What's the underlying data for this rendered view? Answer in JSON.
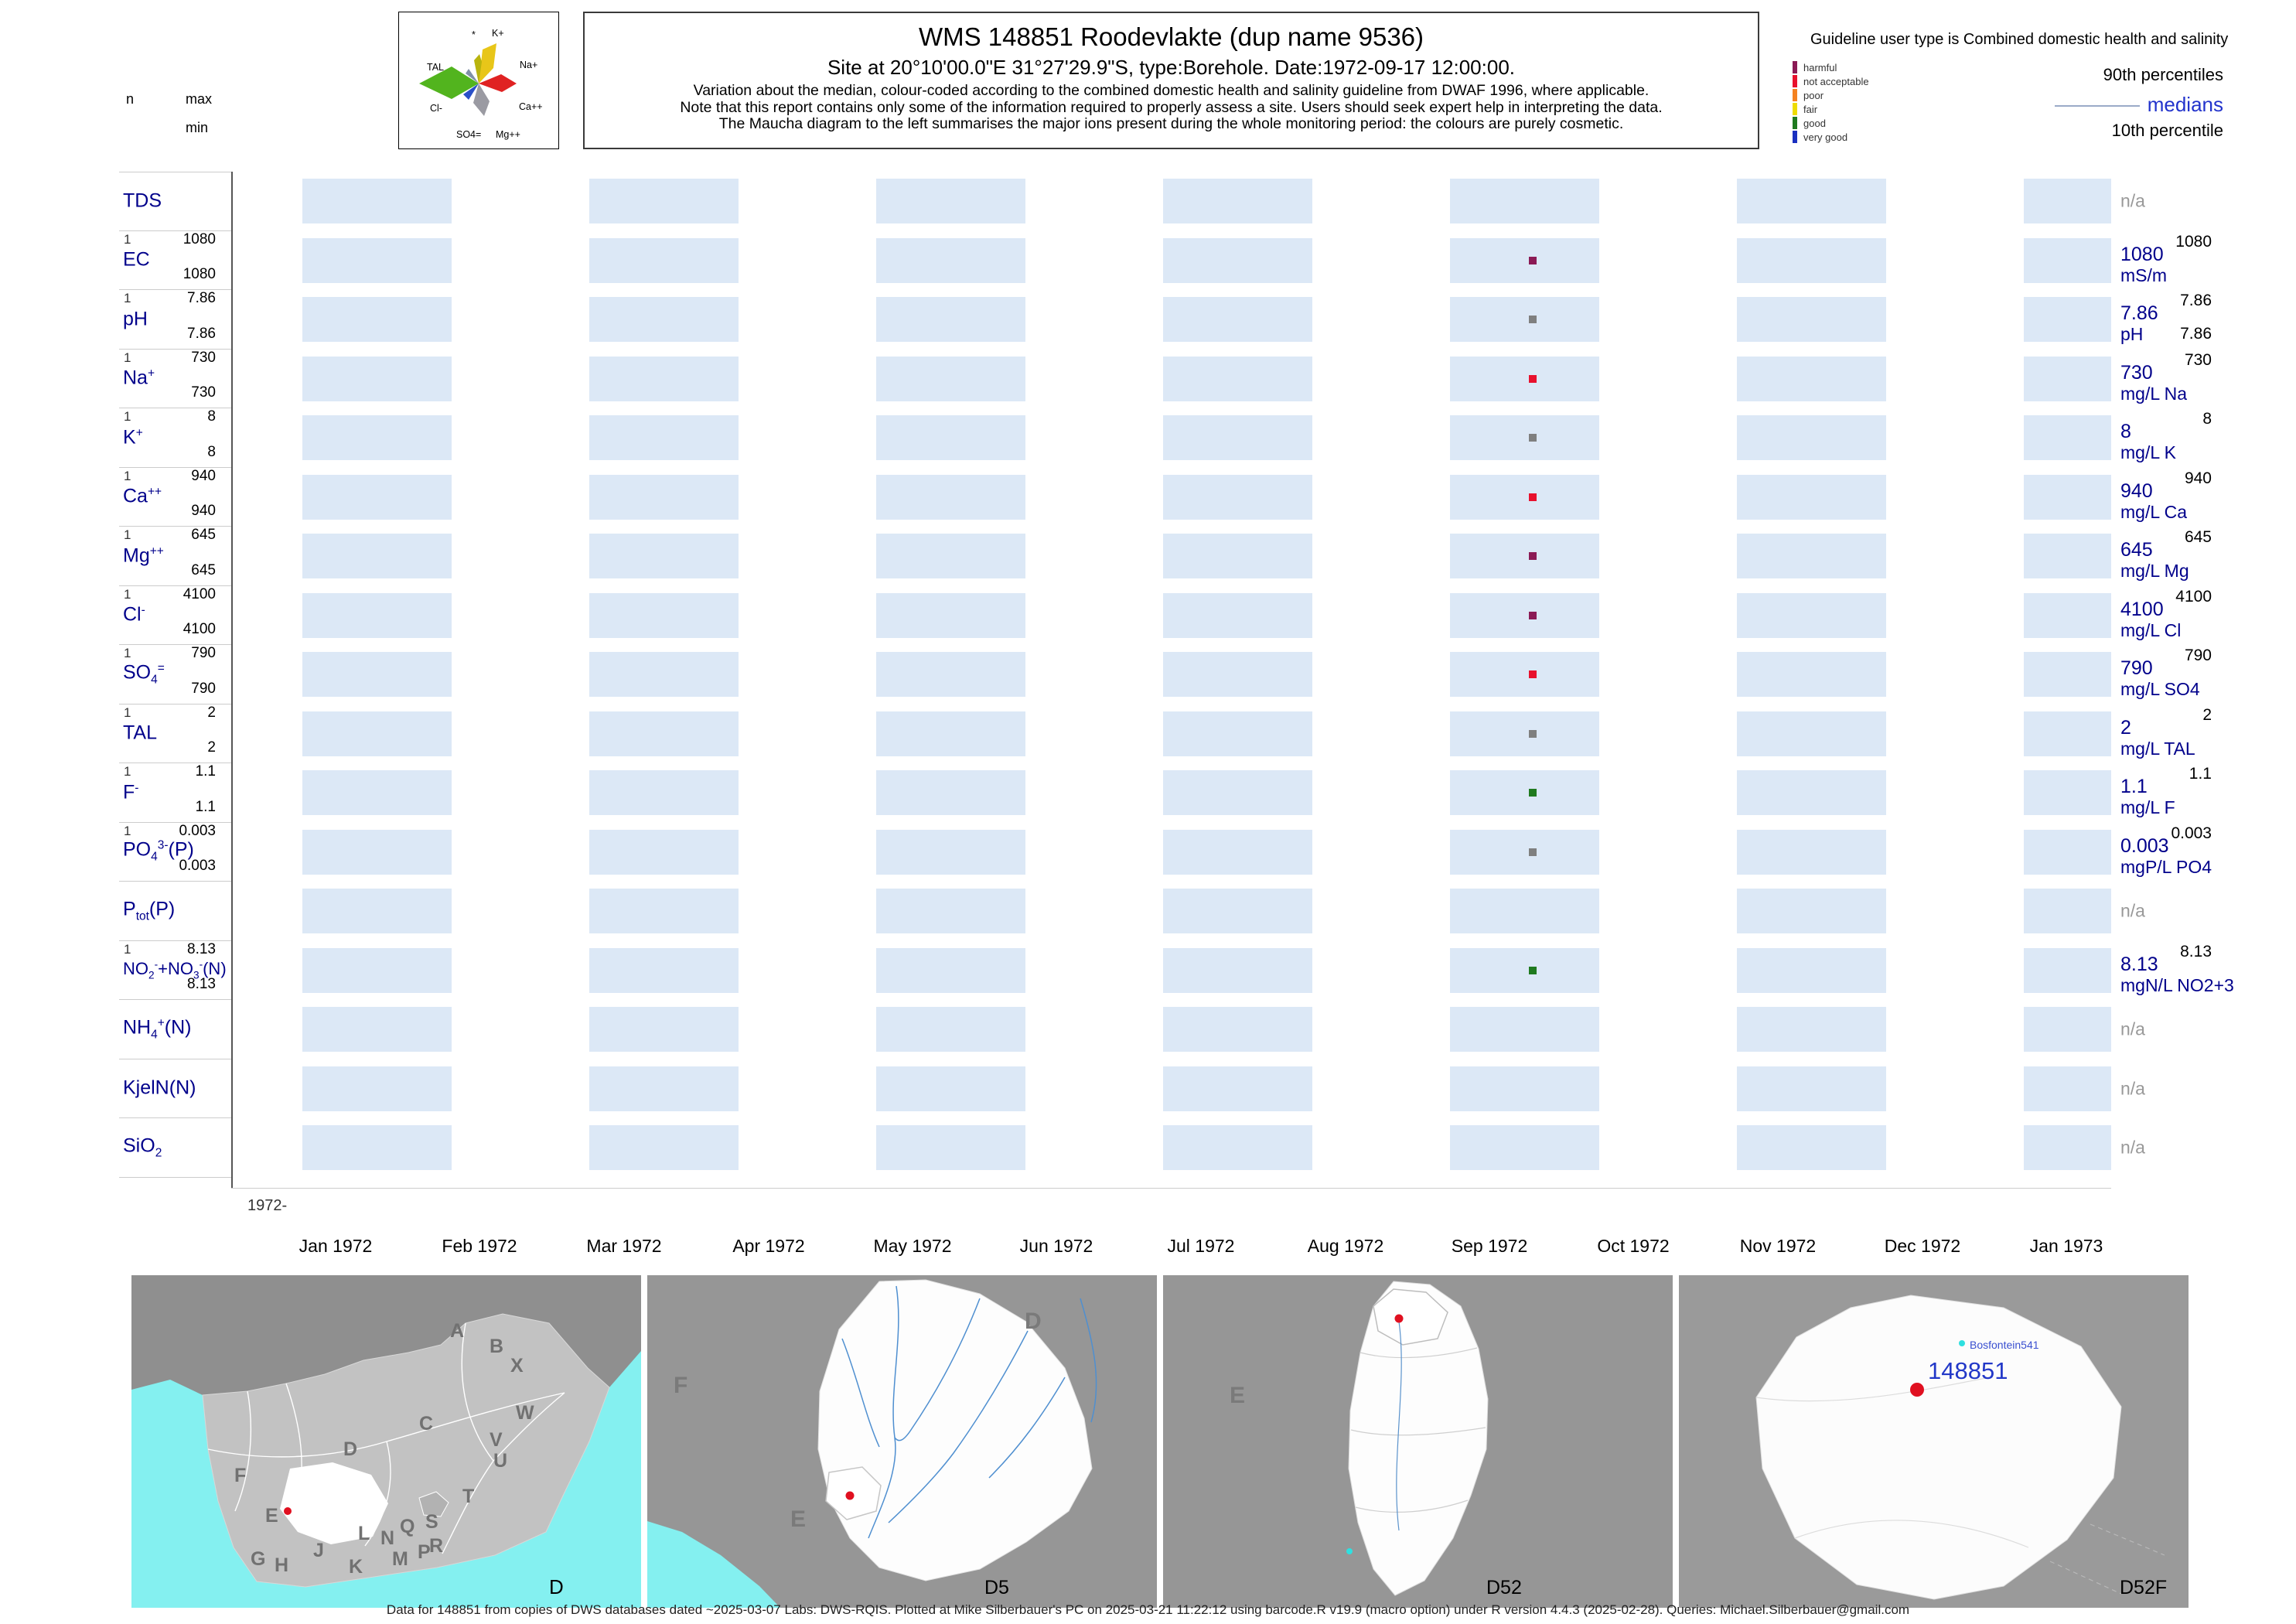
{
  "header": {
    "title": "WMS 148851  Roodevlakte (dup name 9536)",
    "subtitle": "Site at 20°10'00.0\"E 31°27'29.9\"S, type:Borehole. Date:1972-09-17 12:00:00.",
    "notes": [
      "Variation about the median,  colour-coded according to the combined domestic health and salinity guideline from DWAF 1996, where applicable.",
      "Note that this report contains only some of the information required to properly assess a site. Users should seek expert help in interpreting the data.",
      "The Maucha diagram to the left summarises the major ions present during the whole monitoring period: the colours are purely cosmetic."
    ],
    "stats": {
      "n": "n",
      "max": "max",
      "min": "min"
    }
  },
  "maucha": {
    "labels": {
      "star": "*",
      "k": "K+",
      "na": "Na+",
      "tal": "TAL",
      "cl": "Cl-",
      "ca": "Ca++",
      "so4": "SO4=",
      "mg": "Mg++"
    },
    "colors": {
      "cl": "#52b41e",
      "na": "#e8c619",
      "k": "#b9b40e",
      "ca": "#e02222",
      "mg": "#9a9aa2",
      "so4": "#2a50c8",
      "tal": "#8090a8"
    }
  },
  "guideline": {
    "title": "Guideline user type is Combined domestic health and salinity",
    "classes": [
      {
        "label": "harmful",
        "color": "#8B1A55"
      },
      {
        "label": "not acceptable",
        "color": "#E8112D"
      },
      {
        "label": "poor",
        "color": "#F58220"
      },
      {
        "label": "fair",
        "color": "#EEDC00"
      },
      {
        "label": "good",
        "color": "#1F7A1F"
      },
      {
        "label": "very good",
        "color": "#1A30C0"
      }
    ],
    "p90_label": "90th percentiles",
    "median_label": "medians",
    "p10_label": "10th percentile"
  },
  "rows": [
    {
      "name": "TDS",
      "label": [
        {
          "t": "TDS"
        }
      ],
      "na": "n/a"
    },
    {
      "name": "EC",
      "label": [
        {
          "t": "EC"
        }
      ],
      "n": "1",
      "max": "1080",
      "min": "1080",
      "p90": "1080",
      "median": "1080",
      "unit": "mS/m",
      "dot": "#8B1A55"
    },
    {
      "name": "pH",
      "label": [
        {
          "t": "pH"
        }
      ],
      "n": "1",
      "max": "7.86",
      "min": "7.86",
      "p90": "7.86",
      "median": "7.86",
      "unit": "pH",
      "p10": "7.86",
      "dot": "#7F7F7F"
    },
    {
      "name": "Na+",
      "label": [
        {
          "t": "Na"
        },
        {
          "t": "+",
          "s": "sup"
        }
      ],
      "n": "1",
      "max": "730",
      "min": "730",
      "p90": "730",
      "median": "730",
      "unit": "mg/L Na",
      "dot": "#E8112D"
    },
    {
      "name": "K+",
      "label": [
        {
          "t": "K"
        },
        {
          "t": "+",
          "s": "sup"
        }
      ],
      "n": "1",
      "max": "8",
      "min": "8",
      "p90": "8",
      "median": "8",
      "unit": "mg/L K",
      "dot": "#7F7F7F"
    },
    {
      "name": "Ca++",
      "label": [
        {
          "t": "Ca"
        },
        {
          "t": "++",
          "s": "sup"
        }
      ],
      "n": "1",
      "max": "940",
      "min": "940",
      "p90": "940",
      "median": "940",
      "unit": "mg/L Ca",
      "dot": "#E8112D"
    },
    {
      "name": "Mg++",
      "label": [
        {
          "t": "Mg"
        },
        {
          "t": "++",
          "s": "sup"
        }
      ],
      "n": "1",
      "max": "645",
      "min": "645",
      "p90": "645",
      "median": "645",
      "unit": "mg/L Mg",
      "dot": "#8B1A55"
    },
    {
      "name": "Cl-",
      "label": [
        {
          "t": "Cl"
        },
        {
          "t": "-",
          "s": "sup"
        }
      ],
      "n": "1",
      "max": "4100",
      "min": "4100",
      "p90": "4100",
      "median": "4100",
      "unit": "mg/L Cl",
      "dot": "#8B1A55"
    },
    {
      "name": "SO4=",
      "label": [
        {
          "t": "SO"
        },
        {
          "t": "4",
          "s": "sub"
        },
        {
          "t": "=",
          "s": "sup"
        }
      ],
      "n": "1",
      "max": "790",
      "min": "790",
      "p90": "790",
      "median": "790",
      "unit": "mg/L SO4",
      "dot": "#E8112D"
    },
    {
      "name": "TAL",
      "label": [
        {
          "t": "TAL"
        }
      ],
      "n": "1",
      "max": "2",
      "min": "2",
      "p90": "2",
      "median": "2",
      "unit": "mg/L TAL",
      "dot": "#7F7F7F"
    },
    {
      "name": "F-",
      "label": [
        {
          "t": "F"
        },
        {
          "t": "-",
          "s": "sup"
        }
      ],
      "n": "1",
      "max": "1.1",
      "min": "1.1",
      "p90": "1.1",
      "median": "1.1",
      "unit": "mg/L F",
      "dot": "#1F7A1F"
    },
    {
      "name": "PO43-(P)",
      "label": [
        {
          "t": "PO"
        },
        {
          "t": "4",
          "s": "sub"
        },
        {
          "t": "3-",
          "s": "sup"
        },
        {
          "t": "(P)"
        }
      ],
      "n": "1",
      "max": "0.003",
      "min": "0.003",
      "p90": "0.003",
      "median": "0.003",
      "unit": "mgP/L PO4",
      "dot": "#7F7F7F"
    },
    {
      "name": "Ptot(P)",
      "label": [
        {
          "t": "P"
        },
        {
          "t": "tot",
          "s": "sub"
        },
        {
          "t": "(P)"
        }
      ],
      "na": "n/a"
    },
    {
      "name": "NO2-+NO3-(N)",
      "label": [
        {
          "t": "NO"
        },
        {
          "t": "2",
          "s": "sub"
        },
        {
          "t": "-",
          "s": "sup"
        },
        {
          "t": "+NO"
        },
        {
          "t": "3",
          "s": "sub"
        },
        {
          "t": "-",
          "s": "sup"
        },
        {
          "t": "(N)"
        }
      ],
      "n": "1",
      "max": "8.13",
      "min": "8.13",
      "p90": "8.13",
      "median": "8.13",
      "unit": "mgN/L NO2+3",
      "dot": "#1F7A1F"
    },
    {
      "name": "NH4+(N)",
      "label": [
        {
          "t": "NH"
        },
        {
          "t": "4",
          "s": "sub"
        },
        {
          "t": "+",
          "s": "sup"
        },
        {
          "t": "(N)"
        }
      ],
      "na": "n/a"
    },
    {
      "name": "KjelN(N)",
      "label": [
        {
          "t": "KjelN(N)"
        }
      ],
      "na": "n/a"
    },
    {
      "name": "SiO2",
      "label": [
        {
          "t": "SiO"
        },
        {
          "t": "2",
          "s": "sub"
        }
      ],
      "na": "n/a"
    }
  ],
  "axis": {
    "year": "1972-",
    "months": [
      "Jan 1972",
      "Feb 1972",
      "Mar 1972",
      "Apr 1972",
      "May 1972",
      "Jun 1972",
      "Jul 1972",
      "Aug 1972",
      "Sep 1972",
      "Oct 1972",
      "Nov 1972",
      "Dec 1972",
      "Jan 1973"
    ]
  },
  "maps": [
    {
      "corner_label": "D",
      "letters": [
        "A",
        "B",
        "X",
        "C",
        "W",
        "D",
        "V",
        "U",
        "T",
        "F",
        "E",
        "S",
        "Q",
        "R",
        "L",
        "N",
        "G",
        "H",
        "J",
        "K",
        "M",
        "P"
      ]
    },
    {
      "corner_label": "D5",
      "letters": [
        "F",
        "E",
        "D"
      ]
    },
    {
      "corner_label": "D52",
      "letters": [
        "E"
      ]
    },
    {
      "corner_label": "D52F",
      "station_id": "148851",
      "station_name": "Bosfontein541"
    }
  ],
  "footer": "Data for 148851 from copies of DWS databases dated ~2025-03-07 Labs: DWS-RQIS. Plotted at Mike Silberbauer's PC on 2025-03-21 11:22:12 using barcode.R v19.9 (macro option) under R version 4.4.3 (2025-02-28). Queries: Michael.Silberbauer@gmail.com",
  "chart_data": {
    "type": "scatter",
    "title": "WMS 148851  Roodevlakte (dup name 9536)",
    "subtitle": "Site at 20°10'00.0\"E 31°27'29.9\"S, type:Borehole. Date:1972-09-17 12:00:00.",
    "x_axis": {
      "labels": [
        "Jan 1972",
        "Feb 1972",
        "Mar 1972",
        "Apr 1972",
        "May 1972",
        "Jun 1972",
        "Jul 1972",
        "Aug 1972",
        "Sep 1972",
        "Oct 1972",
        "Nov 1972",
        "Dec 1972",
        "Jan 1973"
      ]
    },
    "sample_date": "1972-09-17 12:00:00",
    "legend_position": "top-right",
    "series": [
      {
        "param": "TDS",
        "n": 0,
        "values": [],
        "median": null,
        "unit": null,
        "guideline_class": null
      },
      {
        "param": "EC",
        "n": 1,
        "values": [
          {
            "x": "1972-09-17",
            "y": 1080
          }
        ],
        "min": 1080,
        "max": 1080,
        "p90": 1080,
        "median": 1080,
        "unit": "mS/m",
        "guideline_class": "harmful"
      },
      {
        "param": "pH",
        "n": 1,
        "values": [
          {
            "x": "1972-09-17",
            "y": 7.86
          }
        ],
        "min": 7.86,
        "max": 7.86,
        "p90": 7.86,
        "p10": 7.86,
        "median": 7.86,
        "unit": "pH",
        "guideline_class": "none"
      },
      {
        "param": "Na+",
        "n": 1,
        "values": [
          {
            "x": "1972-09-17",
            "y": 730
          }
        ],
        "min": 730,
        "max": 730,
        "p90": 730,
        "median": 730,
        "unit": "mg/L Na",
        "guideline_class": "not acceptable"
      },
      {
        "param": "K+",
        "n": 1,
        "values": [
          {
            "x": "1972-09-17",
            "y": 8
          }
        ],
        "min": 8,
        "max": 8,
        "p90": 8,
        "median": 8,
        "unit": "mg/L K",
        "guideline_class": "none"
      },
      {
        "param": "Ca++",
        "n": 1,
        "values": [
          {
            "x": "1972-09-17",
            "y": 940
          }
        ],
        "min": 940,
        "max": 940,
        "p90": 940,
        "median": 940,
        "unit": "mg/L Ca",
        "guideline_class": "not acceptable"
      },
      {
        "param": "Mg++",
        "n": 1,
        "values": [
          {
            "x": "1972-09-17",
            "y": 645
          }
        ],
        "min": 645,
        "max": 645,
        "p90": 645,
        "median": 645,
        "unit": "mg/L Mg",
        "guideline_class": "harmful"
      },
      {
        "param": "Cl-",
        "n": 1,
        "values": [
          {
            "x": "1972-09-17",
            "y": 4100
          }
        ],
        "min": 4100,
        "max": 4100,
        "p90": 4100,
        "median": 4100,
        "unit": "mg/L Cl",
        "guideline_class": "harmful"
      },
      {
        "param": "SO4=",
        "n": 1,
        "values": [
          {
            "x": "1972-09-17",
            "y": 790
          }
        ],
        "min": 790,
        "max": 790,
        "p90": 790,
        "median": 790,
        "unit": "mg/L SO4",
        "guideline_class": "not acceptable"
      },
      {
        "param": "TAL",
        "n": 1,
        "values": [
          {
            "x": "1972-09-17",
            "y": 2
          }
        ],
        "min": 2,
        "max": 2,
        "p90": 2,
        "median": 2,
        "unit": "mg/L TAL",
        "guideline_class": "none"
      },
      {
        "param": "F-",
        "n": 1,
        "values": [
          {
            "x": "1972-09-17",
            "y": 1.1
          }
        ],
        "min": 1.1,
        "max": 1.1,
        "p90": 1.1,
        "median": 1.1,
        "unit": "mg/L F",
        "guideline_class": "good"
      },
      {
        "param": "PO43-(P)",
        "n": 1,
        "values": [
          {
            "x": "1972-09-17",
            "y": 0.003
          }
        ],
        "min": 0.003,
        "max": 0.003,
        "p90": 0.003,
        "median": 0.003,
        "unit": "mgP/L PO4",
        "guideline_class": "none"
      },
      {
        "param": "Ptot(P)",
        "n": 0,
        "values": [],
        "median": null,
        "unit": null,
        "guideline_class": null
      },
      {
        "param": "NO2-+NO3-(N)",
        "n": 1,
        "values": [
          {
            "x": "1972-09-17",
            "y": 8.13
          }
        ],
        "min": 8.13,
        "max": 8.13,
        "p90": 8.13,
        "median": 8.13,
        "unit": "mgN/L NO2+3",
        "guideline_class": "good"
      },
      {
        "param": "NH4+(N)",
        "n": 0,
        "values": [],
        "median": null,
        "unit": null,
        "guideline_class": null
      },
      {
        "param": "KjelN(N)",
        "n": 0,
        "values": [],
        "median": null,
        "unit": null,
        "guideline_class": null
      },
      {
        "param": "SiO2",
        "n": 0,
        "values": [],
        "median": null,
        "unit": null,
        "guideline_class": null
      }
    ]
  }
}
